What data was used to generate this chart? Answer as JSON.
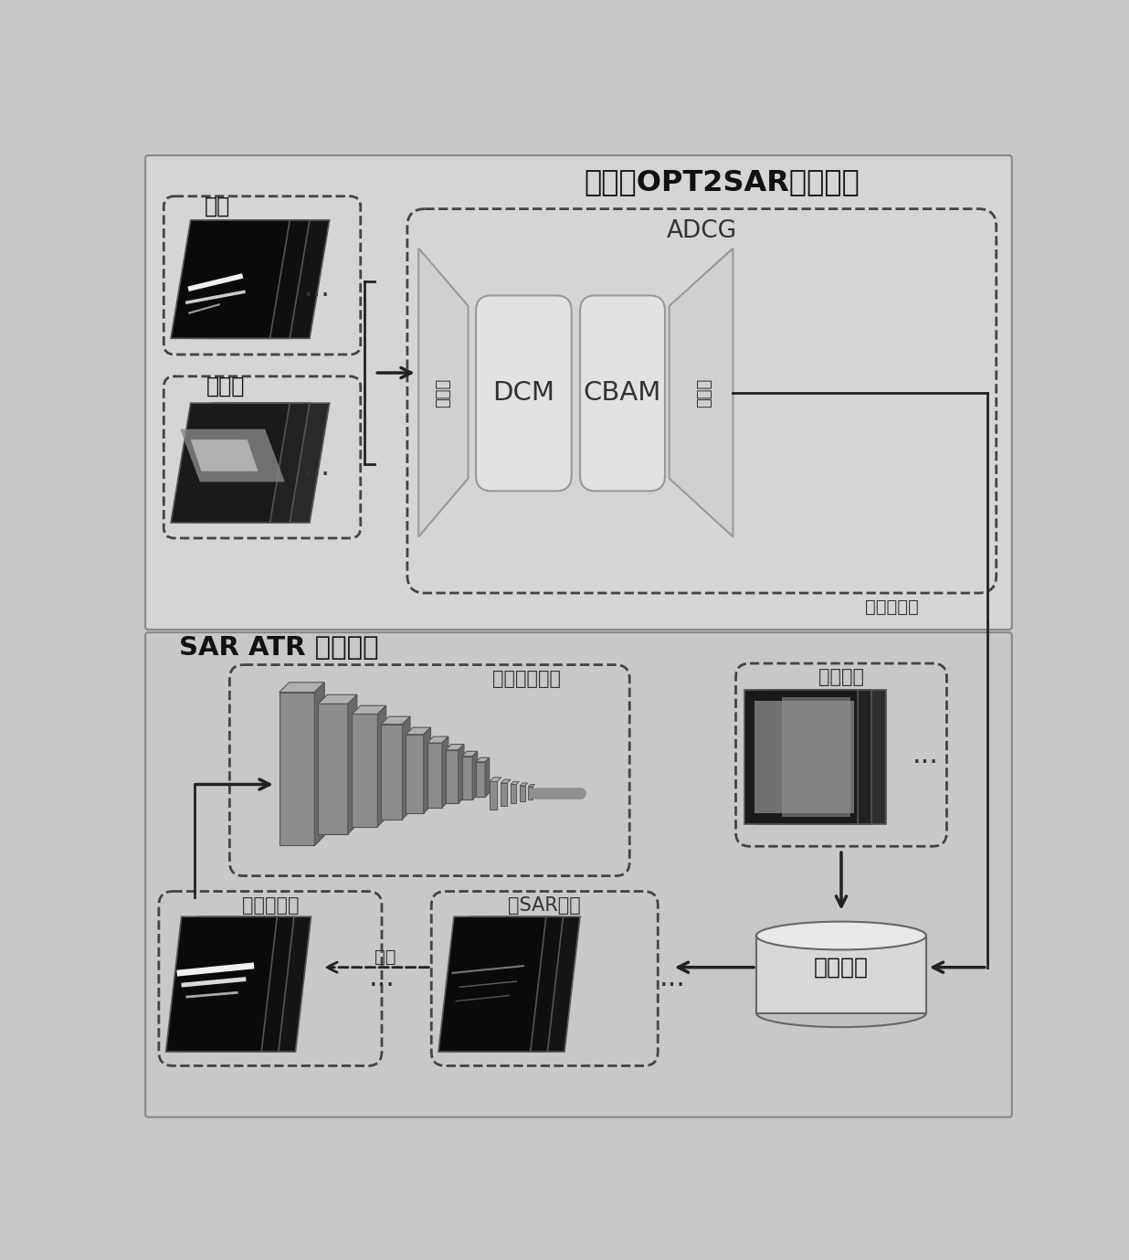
{
  "bg_color": "#c8c8c8",
  "top_bg": "#d8d8d8",
  "bot_bg": "#cbcbcb",
  "title_top": "像素级OPT2SAR特征转换",
  "title_bottom": "SAR ATR 网络框架",
  "adcg_label": "ADCG",
  "dcm_label": "DCM",
  "cbam_label": "CBAM",
  "encoder_label": "编码器",
  "decoder_label": "解码器",
  "source_label": "源域",
  "target_domain_label": "目标域",
  "train_label": "训练并获得",
  "ship_net_label": "舰船识别网络",
  "optical_label": "光学图像",
  "classify_label": "分类数据集",
  "fake_sar_label": "伪SAR图像",
  "gen_model_label": "生成模型",
  "expand_label": "扩充"
}
